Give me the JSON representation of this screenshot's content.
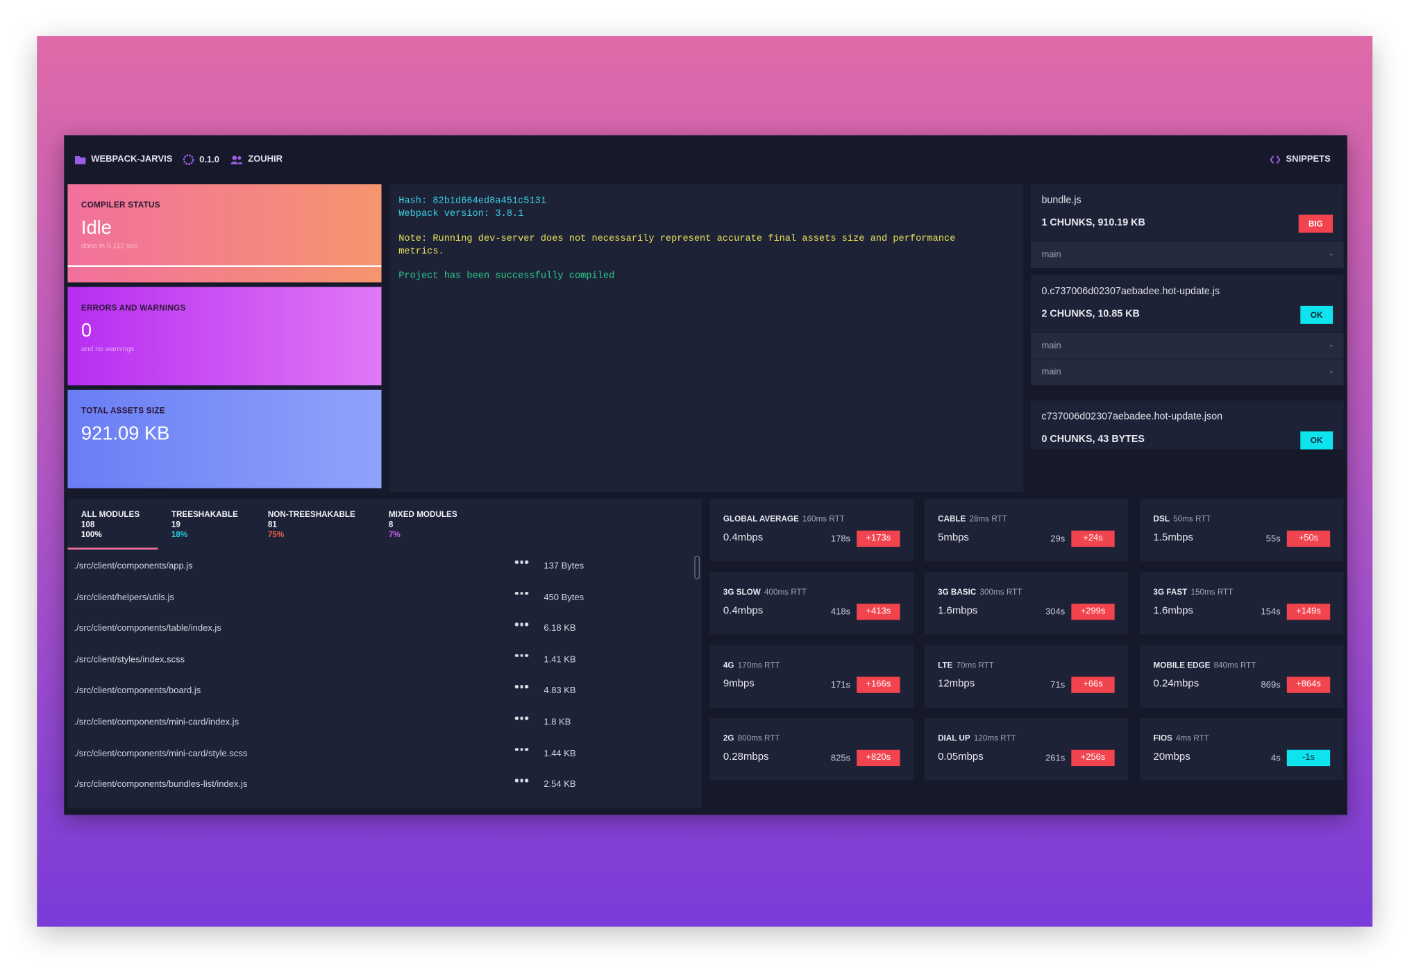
{
  "header": {
    "project": "WEBPACK-JARVIS",
    "version": "0.1.0",
    "user": "ZOUHIR",
    "snippets": "SNIPPETS"
  },
  "cards": [
    {
      "title": "COMPILER STATUS",
      "value": "Idle",
      "subtitle": "done in 0.112 sec"
    },
    {
      "title": "ERRORS AND WARNINGS",
      "value": "0",
      "subtitle": "and no warnings"
    },
    {
      "title": "TOTAL ASSETS SIZE",
      "value": "921.09 KB"
    }
  ],
  "console": {
    "hash": "Hash: 82b1d664ed8a451c5131",
    "version": "Webpack version: 3.8.1",
    "note": "Note: Running dev-server does not necessarily represent accurate final assets size and performance metrics.",
    "result": "Project has been successfully compiled"
  },
  "assets": [
    {
      "name": "bundle.js",
      "summary": "1 CHUNKS, 910.19 KB",
      "badge": "BIG",
      "chunks": [
        {
          "name": "main",
          "value": "-"
        }
      ]
    },
    {
      "name": "0.c737006d02307aebadee.hot-update.js",
      "summary": "2 CHUNKS, 10.85 KB",
      "badge": "OK",
      "chunks": [
        {
          "name": "main",
          "value": "-"
        },
        {
          "name": "main",
          "value": "-"
        }
      ]
    },
    {
      "name": "c737006d02307aebadee.hot-update.json",
      "summary": "0 CHUNKS, 43 BYTES",
      "badge": "OK",
      "chunks": []
    }
  ],
  "tabs": [
    {
      "label": "ALL MODULES",
      "count": "108",
      "percent": "100%"
    },
    {
      "label": "TREESHAKABLE",
      "count": "19",
      "percent": "18%"
    },
    {
      "label": "NON-TREESHAKABLE",
      "count": "81",
      "percent": "75%"
    },
    {
      "label": "MIXED MODULES",
      "count": "8",
      "percent": "7%"
    }
  ],
  "modules": [
    {
      "path": "./src/client/components/app.js",
      "size": "137 Bytes"
    },
    {
      "path": "./src/client/helpers/utils.js",
      "size": "450 Bytes"
    },
    {
      "path": "./src/client/components/table/index.js",
      "size": "6.18 KB"
    },
    {
      "path": "./src/client/styles/index.scss",
      "size": "1.41 KB"
    },
    {
      "path": "./src/client/components/board.js",
      "size": "4.83 KB"
    },
    {
      "path": "./src/client/components/mini-card/index.js",
      "size": "1.8 KB"
    },
    {
      "path": "./src/client/components/mini-card/style.scss",
      "size": "1.44 KB"
    },
    {
      "path": "./src/client/components/bundles-list/index.js",
      "size": "2.54 KB"
    }
  ],
  "networks": [
    {
      "name": "GLOBAL AVERAGE",
      "rtt": "160ms RTT",
      "speed": "0.4mbps",
      "time": "178s",
      "diff": "+173s"
    },
    {
      "name": "CABLE",
      "rtt": "28ms RTT",
      "speed": "5mbps",
      "time": "29s",
      "diff": "+24s"
    },
    {
      "name": "DSL",
      "rtt": "50ms RTT",
      "speed": "1.5mbps",
      "time": "55s",
      "diff": "+50s"
    },
    {
      "name": "3G SLOW",
      "rtt": "400ms RTT",
      "speed": "0.4mbps",
      "time": "418s",
      "diff": "+413s"
    },
    {
      "name": "3G BASIC",
      "rtt": "300ms RTT",
      "speed": "1.6mbps",
      "time": "304s",
      "diff": "+299s"
    },
    {
      "name": "3G FAST",
      "rtt": "150ms RTT",
      "speed": "1.6mbps",
      "time": "154s",
      "diff": "+149s"
    },
    {
      "name": "4G",
      "rtt": "170ms RTT",
      "speed": "9mbps",
      "time": "171s",
      "diff": "+166s"
    },
    {
      "name": "LTE",
      "rtt": "70ms RTT",
      "speed": "12mbps",
      "time": "71s",
      "diff": "+66s"
    },
    {
      "name": "MOBILE EDGE",
      "rtt": "840ms RTT",
      "speed": "0.24mbps",
      "time": "869s",
      "diff": "+864s"
    },
    {
      "name": "2G",
      "rtt": "800ms RTT",
      "speed": "0.28mbps",
      "time": "825s",
      "diff": "+820s"
    },
    {
      "name": "DIAL UP",
      "rtt": "120ms RTT",
      "speed": "0.05mbps",
      "time": "261s",
      "diff": "+256s"
    },
    {
      "name": "FIOS",
      "rtt": "4ms RTT",
      "speed": "20mbps",
      "time": "4s",
      "diff": "-1s"
    }
  ]
}
